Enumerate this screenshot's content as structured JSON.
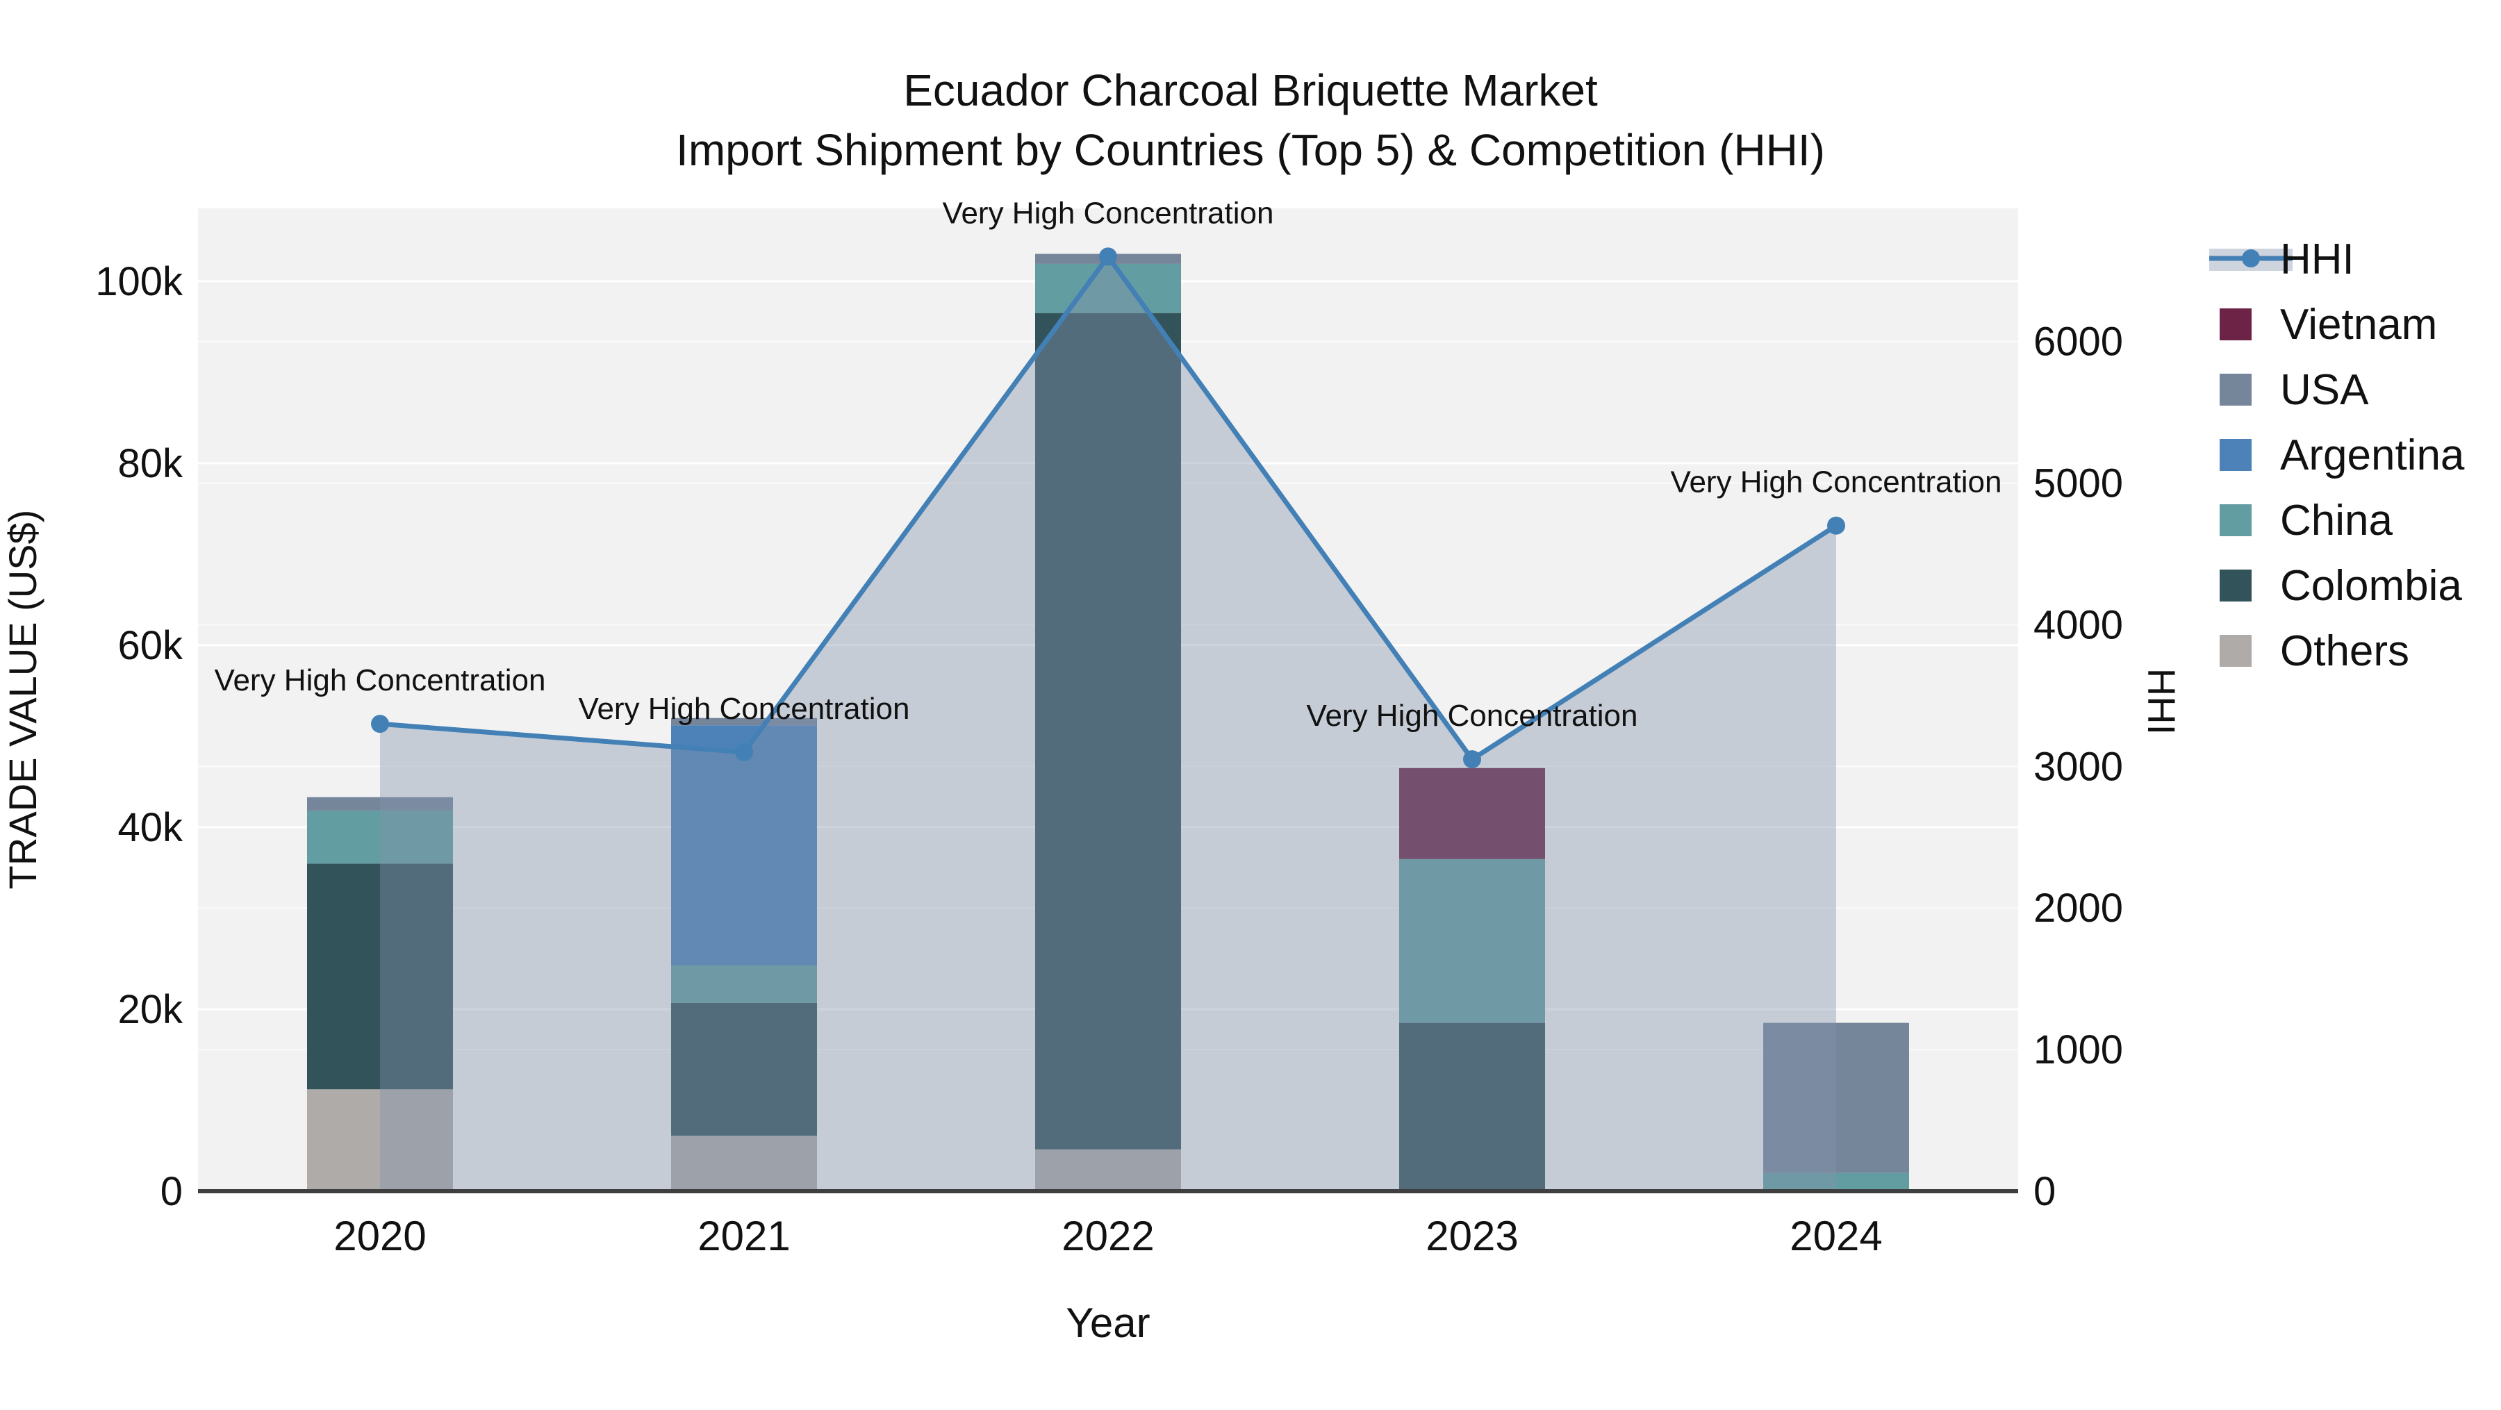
{
  "title": {
    "line1": "Ecuador Charcoal Briquette Market",
    "line2": "Import Shipment by Countries (Top 5) & Competition (HHI)"
  },
  "axes": {
    "x_title": "Year",
    "y_left_title": "TRADE VALUE (US$)",
    "y_right_title": "HHI",
    "y_left_ticks": [
      {
        "value": 0,
        "label": "0"
      },
      {
        "value": 20000,
        "label": "20k"
      },
      {
        "value": 40000,
        "label": "40k"
      },
      {
        "value": 60000,
        "label": "60k"
      },
      {
        "value": 80000,
        "label": "80k"
      },
      {
        "value": 100000,
        "label": "100k"
      }
    ],
    "y_right_ticks": [
      {
        "value": 0,
        "label": "0"
      },
      {
        "value": 1000,
        "label": "1000"
      },
      {
        "value": 2000,
        "label": "2000"
      },
      {
        "value": 3000,
        "label": "3000"
      },
      {
        "value": 4000,
        "label": "4000"
      },
      {
        "value": 5000,
        "label": "5000"
      },
      {
        "value": 6000,
        "label": "6000"
      }
    ]
  },
  "colors": {
    "plot_background": "#f2f2f2",
    "gridline": "#ffffff",
    "axis_line": "#3f3f3f",
    "hhi_line": "#4380b6",
    "hhi_fill": "rgba(130,148,172,0.40)",
    "vietnam": "#6c2345",
    "usa": "#75869b",
    "argentina": "#4d82b8",
    "china": "#619da1",
    "colombia": "#32535a",
    "others": "#aeaba9"
  },
  "legend": {
    "items": [
      {
        "key": "hhi",
        "label": "HHI",
        "type": "line"
      },
      {
        "key": "vietnam",
        "label": "Vietnam",
        "type": "swatch"
      },
      {
        "key": "usa",
        "label": "USA",
        "type": "swatch"
      },
      {
        "key": "argentina",
        "label": "Argentina",
        "type": "swatch"
      },
      {
        "key": "china",
        "label": "China",
        "type": "swatch"
      },
      {
        "key": "colombia",
        "label": "Colombia",
        "type": "swatch"
      },
      {
        "key": "others",
        "label": "Others",
        "type": "swatch"
      }
    ]
  },
  "chart_data": {
    "type": "bar",
    "subtype": "stacked-bars-with-line",
    "categories": [
      "2020",
      "2021",
      "2022",
      "2023",
      "2024"
    ],
    "xlabel": "Year",
    "ylabel_left": "TRADE VALUE (US$)",
    "ylabel_right": "HHI",
    "ylim_left": [
      0,
      108000
    ],
    "ylim_right": [
      0,
      6940
    ],
    "grid": true,
    "legend_position": "right",
    "series": [
      {
        "name": "Others",
        "color_key": "others",
        "values": [
          11200,
          6100,
          4600,
          0,
          0
        ]
      },
      {
        "name": "Colombia",
        "color_key": "colombia",
        "values": [
          24800,
          14600,
          91900,
          18500,
          0
        ]
      },
      {
        "name": "China",
        "color_key": "china",
        "values": [
          5800,
          4100,
          5400,
          18000,
          2000
        ]
      },
      {
        "name": "Argentina",
        "color_key": "argentina",
        "values": [
          0,
          26400,
          0,
          0,
          0
        ]
      },
      {
        "name": "USA",
        "color_key": "usa",
        "values": [
          1500,
          800,
          1100,
          0,
          16500
        ]
      },
      {
        "name": "Vietnam",
        "color_key": "vietnam",
        "values": [
          0,
          0,
          0,
          10000,
          0
        ]
      }
    ],
    "line_series": {
      "name": "HHI",
      "axis": "right",
      "values": [
        3300,
        3100,
        6600,
        3050,
        4700
      ],
      "filled_to_zero": true
    },
    "annotations": [
      {
        "category": "2020",
        "text": "Very High Concentration"
      },
      {
        "category": "2021",
        "text": "Very High Concentration"
      },
      {
        "category": "2022",
        "text": "Very High Concentration"
      },
      {
        "category": "2023",
        "text": "Very High Concentration"
      },
      {
        "category": "2024",
        "text": "Very High Concentration"
      }
    ]
  }
}
